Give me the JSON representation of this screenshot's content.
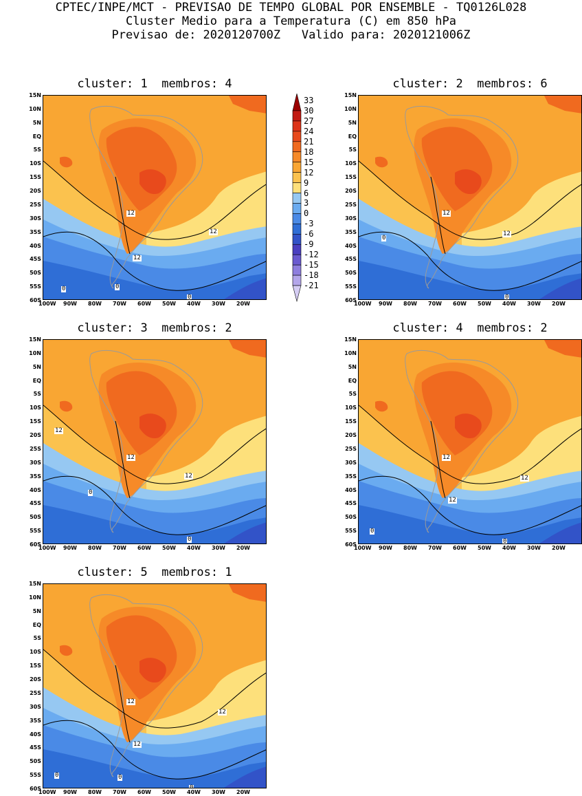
{
  "header": {
    "line1": "CPTEC/INPE/MCT - PREVISAO DE TEMPO GLOBAL POR ENSEMBLE - TQ0126L028",
    "line2": "Cluster Medio para a Temperatura (C) em 850 hPa",
    "line3": "Previsao de: 2020120700Z   Valido para: 2020121006Z"
  },
  "panels": [
    {
      "title": "cluster: 1  membros: 4",
      "contours": [
        "12",
        "12",
        "12",
        "0",
        "0",
        "0"
      ]
    },
    {
      "title": "cluster: 2  membros: 6",
      "contours": [
        "12",
        "12",
        "0",
        "0"
      ]
    },
    {
      "title": "cluster: 3  membros: 2",
      "contours": [
        "12",
        "12",
        "12",
        "0",
        "0"
      ]
    },
    {
      "title": "cluster: 4  membros: 2",
      "contours": [
        "12",
        "12",
        "12",
        "0",
        "0"
      ]
    },
    {
      "title": "cluster: 5  membros: 1",
      "contours": [
        "12",
        "12",
        "12",
        "0",
        "0",
        "0"
      ]
    }
  ],
  "axes": {
    "lat_labels": [
      "15N",
      "10N",
      "5N",
      "EQ",
      "5S",
      "10S",
      "15S",
      "20S",
      "25S",
      "30S",
      "35S",
      "40S",
      "45S",
      "50S",
      "55S",
      "60S"
    ],
    "lon_labels": [
      "100W",
      "90W",
      "80W",
      "70W",
      "60W",
      "50W",
      "40W",
      "30W",
      "20W"
    ]
  },
  "colorbar": {
    "labels": [
      "33",
      "30",
      "27",
      "24",
      "21",
      "18",
      "15",
      "12",
      "9",
      "6",
      "3",
      "0",
      "-3",
      "-6",
      "-9",
      "-12",
      "-15",
      "-18",
      "-21"
    ],
    "colors": [
      "#9b0000",
      "#c21a12",
      "#dd3318",
      "#e84a1c",
      "#f06a1f",
      "#f68a28",
      "#f9a633",
      "#fbc24e",
      "#fde07b",
      "#96c8f2",
      "#6aabf0",
      "#4a8ae6",
      "#2f6ed6",
      "#3253c8",
      "#4a3fc0",
      "#6a5ad0",
      "#8e7ede",
      "#b3a6ea",
      "#d5cdf4"
    ]
  }
}
